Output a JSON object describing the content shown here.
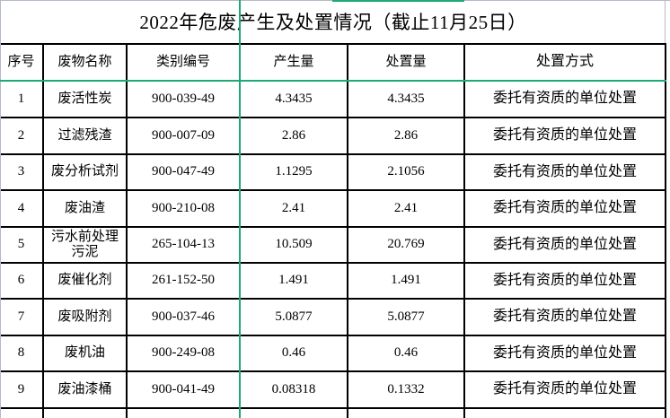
{
  "title": "2022年危废产生及处置情况（截止11月25日）",
  "table": {
    "columns": [
      "序号",
      "废物名称",
      "类别编号",
      "产生量",
      "处置量",
      "处置方式"
    ],
    "rows": [
      [
        "1",
        "废活性炭",
        "900-039-49",
        "4.3435",
        "4.3435",
        "委托有资质的单位处置"
      ],
      [
        "2",
        "过滤残渣",
        "900-007-09",
        "2.86",
        "2.86",
        "委托有资质的单位处置"
      ],
      [
        "3",
        "废分析试剂",
        "900-047-49",
        "1.1295",
        "2.1056",
        "委托有资质的单位处置"
      ],
      [
        "4",
        "废油渣",
        "900-210-08",
        "2.41",
        "2.41",
        "委托有资质的单位处置"
      ],
      [
        "5",
        "污水前处理污泥",
        "265-104-13",
        "10.509",
        "20.769",
        "委托有资质的单位处置"
      ],
      [
        "6",
        "废催化剂",
        "261-152-50",
        "1.491",
        "1.491",
        "委托有资质的单位处置"
      ],
      [
        "7",
        "废吸附剂",
        "900-037-46",
        "5.0877",
        "5.0877",
        "委托有资质的单位处置"
      ],
      [
        "8",
        "废机油",
        "900-249-08",
        "0.46",
        "0.46",
        "委托有资质的单位处置"
      ],
      [
        "9",
        "废油漆桶",
        "900-041-49",
        "0.08318",
        "0.1332",
        "委托有资质的单位处置"
      ]
    ]
  },
  "colors": {
    "border": "#000000",
    "gridline_green": "#1ea873",
    "gridline_gray": "#b4bac9",
    "background": "#ffffff",
    "text": "#000000"
  }
}
